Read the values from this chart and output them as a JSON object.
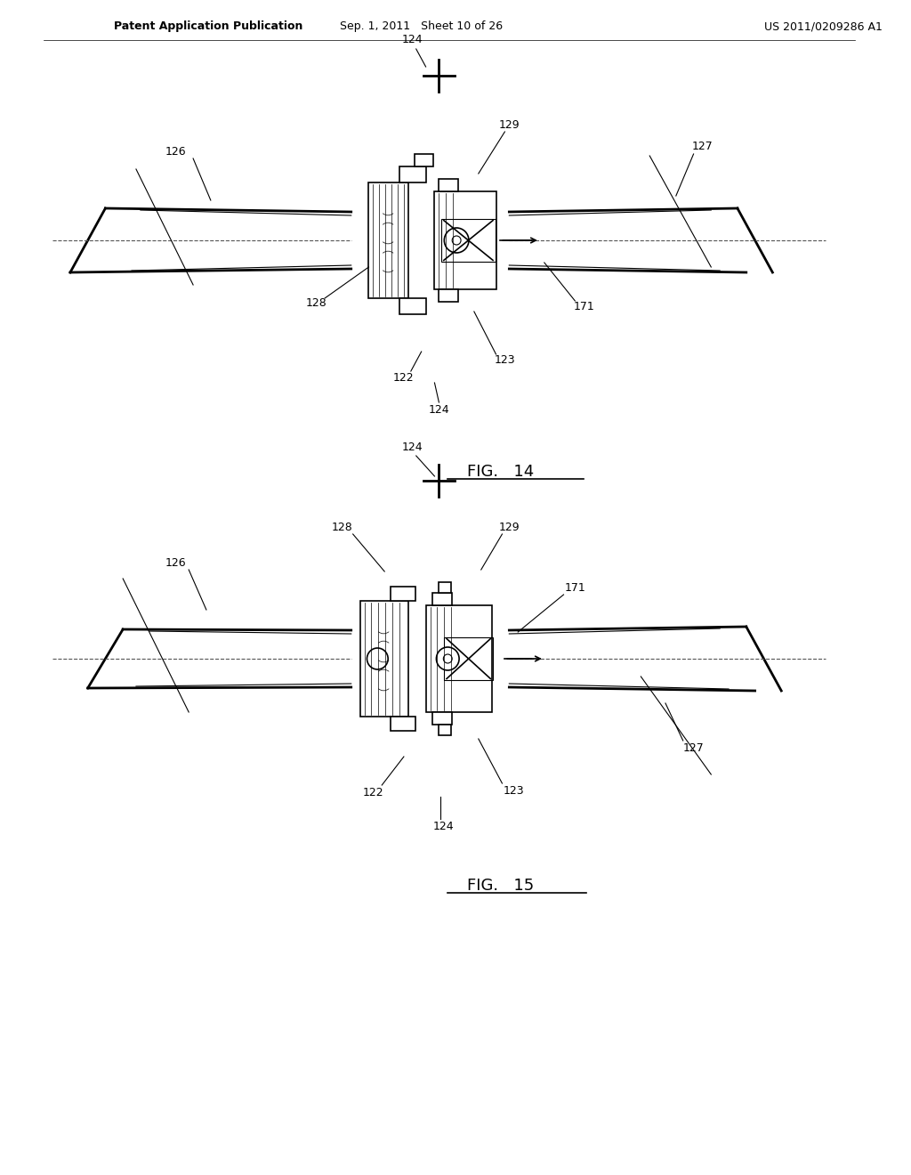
{
  "background_color": "#ffffff",
  "header_left": "Patent Application Publication",
  "header_mid": "Sep. 1, 2011   Sheet 10 of 26",
  "header_right": "US 2011/0209286 A1",
  "fig14_label": "FIG.   14",
  "fig15_label": "FIG.   15",
  "line_color": "#000000",
  "dash_color": "#555555",
  "light_gray": "#bbbbbb",
  "medium_gray": "#888888"
}
